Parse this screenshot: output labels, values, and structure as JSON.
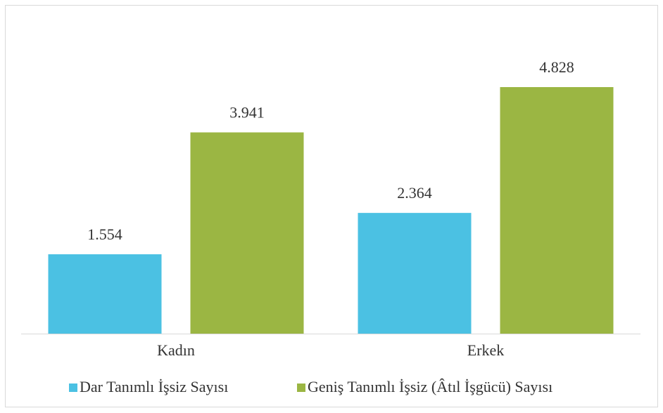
{
  "chart_data": {
    "type": "bar",
    "categories": [
      "Kadın",
      "Erkek"
    ],
    "series": [
      {
        "name": "Dar Tanımlı İşsiz Sayısı",
        "color": "#4bc1e3",
        "values": [
          1554,
          2364
        ],
        "value_labels": [
          "1.554",
          "2.364"
        ]
      },
      {
        "name": "Geniş Tanımlı İşsiz (Âtıl İşgücü) Sayısı",
        "color": "#9bb643",
        "values": [
          3941,
          4828
        ],
        "value_labels": [
          "3.941",
          "4.828"
        ]
      }
    ],
    "legend": "bottom"
  }
}
